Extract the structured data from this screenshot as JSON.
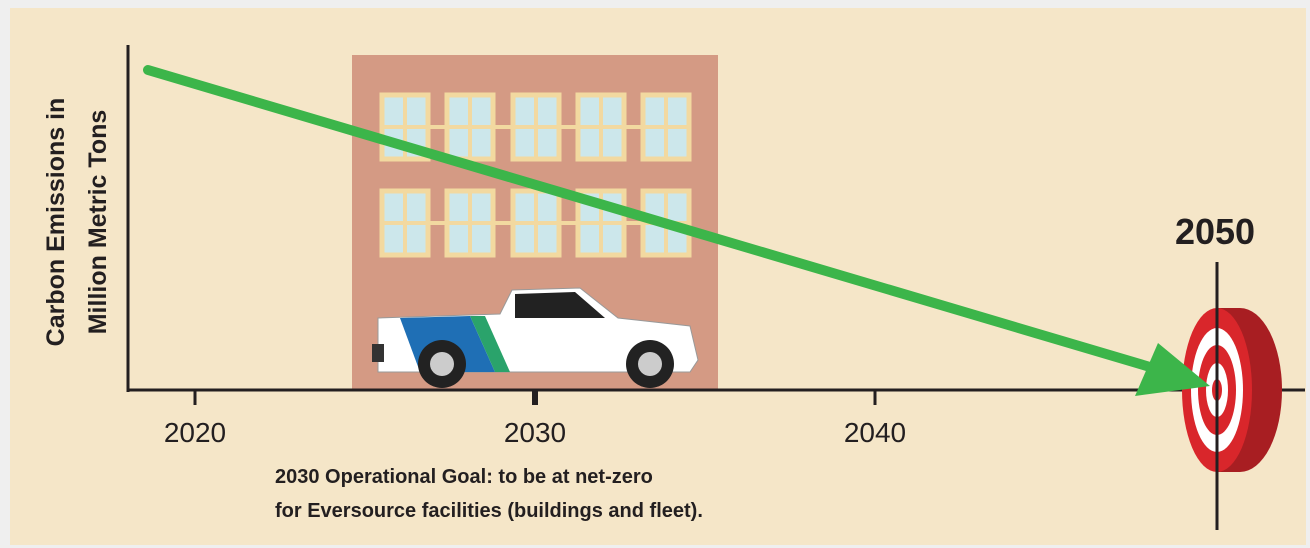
{
  "y_axis_label": [
    "Carbon Emissions in",
    "Million Metric Tons"
  ],
  "x_tick_labels": [
    "2020",
    "2030",
    "2040"
  ],
  "target_label": "2050",
  "annotation": [
    "2030 Operational Goal: to be at net-zero",
    "for Eversource facilities (buildings and fleet)."
  ]
}
